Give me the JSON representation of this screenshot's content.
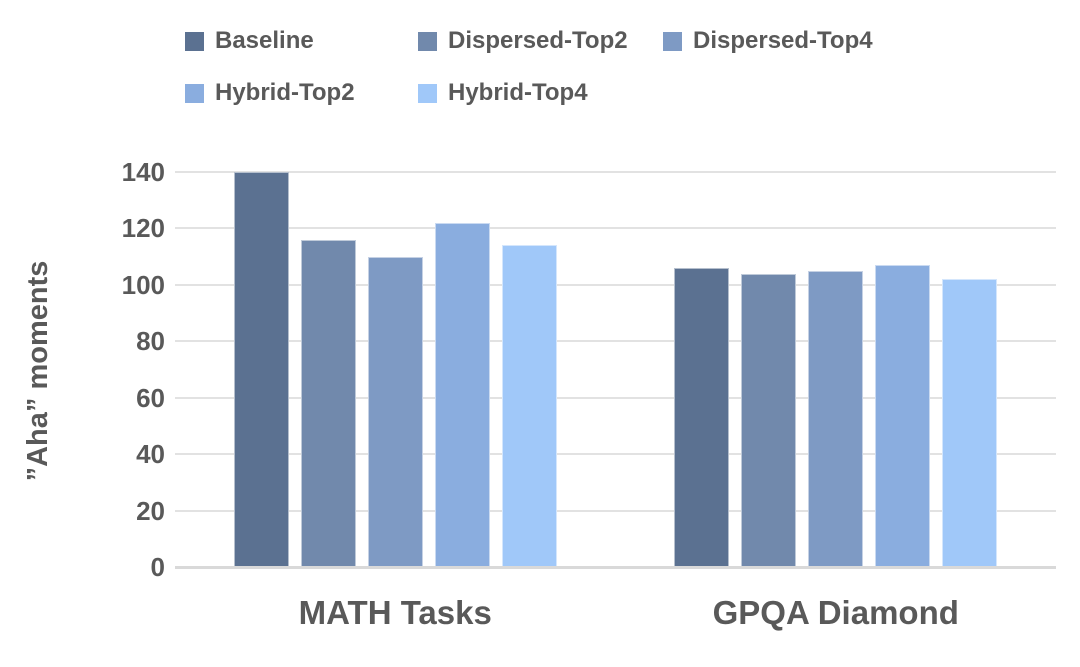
{
  "chart_data": {
    "type": "bar",
    "title": "",
    "ylabel": "”Aha” moments",
    "xlabel": "",
    "categories": [
      "MATH Tasks",
      "GPQA Diamond"
    ],
    "series": [
      {
        "name": "Baseline",
        "color": "#5B7191",
        "values": [
          140,
          106
        ]
      },
      {
        "name": "Dispersed-Top2",
        "color": "#7189AC",
        "values": [
          116,
          104
        ]
      },
      {
        "name": "Dispersed-Top4",
        "color": "#7E9AC4",
        "values": [
          110,
          105
        ]
      },
      {
        "name": "Hybrid-Top2",
        "color": "#8AADDF",
        "values": [
          122,
          107
        ]
      },
      {
        "name": "Hybrid-Top4",
        "color": "#A0C8F9",
        "values": [
          114,
          102
        ]
      }
    ],
    "ylim": [
      0,
      140
    ],
    "yticks": [
      0,
      20,
      40,
      60,
      80,
      100,
      120,
      140
    ],
    "grid": true,
    "legend_position": "top-left",
    "colors": {
      "text": "#595959",
      "gridline": "#E2E2E2",
      "axis_line": "#D9D9D9",
      "background": "#FFFFFF"
    }
  }
}
